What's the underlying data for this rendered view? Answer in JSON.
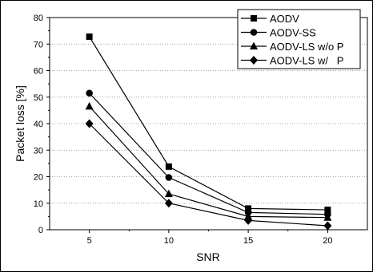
{
  "chart_data": {
    "type": "line",
    "title": "",
    "xlabel": "SNR",
    "ylabel": "Packet loss [%]",
    "x": [
      5,
      10,
      15,
      20
    ],
    "xlim": [
      2.5,
      22.5
    ],
    "ylim": [
      0,
      80
    ],
    "xticks": [
      "5",
      "10",
      "15",
      "20"
    ],
    "yticks": [
      "0",
      "10",
      "20",
      "30",
      "40",
      "50",
      "60",
      "70",
      "80"
    ],
    "grid": "horizontal dotted",
    "legend_position": "top-right",
    "series": [
      {
        "name": "AODV",
        "marker": "square",
        "values": [
          72.8,
          23.8,
          8.0,
          7.5
        ]
      },
      {
        "name": "AODV-SS",
        "marker": "circle",
        "values": [
          51.5,
          19.7,
          6.5,
          5.8
        ]
      },
      {
        "name": "AODV-LS w/o P",
        "marker": "triangle",
        "values": [
          46.5,
          13.5,
          5.0,
          4.6
        ]
      },
      {
        "name": "AODV-LS w/   P",
        "marker": "diamond",
        "values": [
          40.0,
          10.0,
          3.5,
          1.5
        ]
      }
    ]
  }
}
